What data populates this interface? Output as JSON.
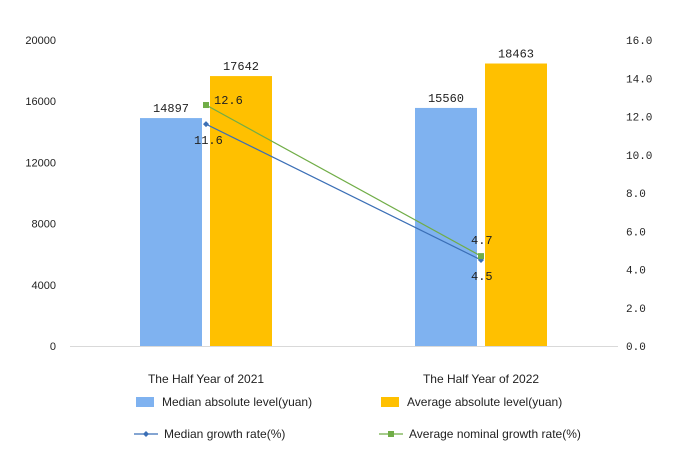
{
  "chart_data": {
    "type": "bar",
    "categories": [
      "The Half Year of 2021",
      "The Half Year of 2022"
    ],
    "series": [
      {
        "name": "Median absolute level(yuan)",
        "kind": "bar",
        "axis": "left",
        "color": "#7fb2f0",
        "values": [
          14897,
          15560
        ]
      },
      {
        "name": "Average absolute level(yuan)",
        "kind": "bar",
        "axis": "left",
        "color": "#ffc000",
        "values": [
          17642,
          18463
        ]
      },
      {
        "name": "Median growth rate(%)",
        "kind": "line",
        "axis": "right",
        "color": "#3b6fb6",
        "values": [
          11.6,
          4.5
        ]
      },
      {
        "name": "Average nominal growth rate(%)",
        "kind": "line",
        "axis": "right",
        "color": "#70ad47",
        "values": [
          12.6,
          4.7
        ]
      }
    ],
    "y_left": {
      "lim": [
        0,
        20000
      ],
      "ticks": [
        "0",
        "4000",
        "8000",
        "12000",
        "16000",
        "20000"
      ]
    },
    "y_right": {
      "lim": [
        0,
        16
      ],
      "ticks": [
        "0.0",
        "2.0",
        "4.0",
        "6.0",
        "8.0",
        "10.0",
        "12.0",
        "14.0",
        "16.0"
      ]
    },
    "bar_labels": [
      [
        "14897",
        "15560"
      ],
      [
        "17642",
        "18463"
      ]
    ],
    "line_labels": [
      [
        "11.6",
        "4.5"
      ],
      [
        "12.6",
        "4.7"
      ]
    ],
    "grid": false,
    "legend": "bottom",
    "title": "",
    "xlabel": "",
    "ylabel": ""
  }
}
